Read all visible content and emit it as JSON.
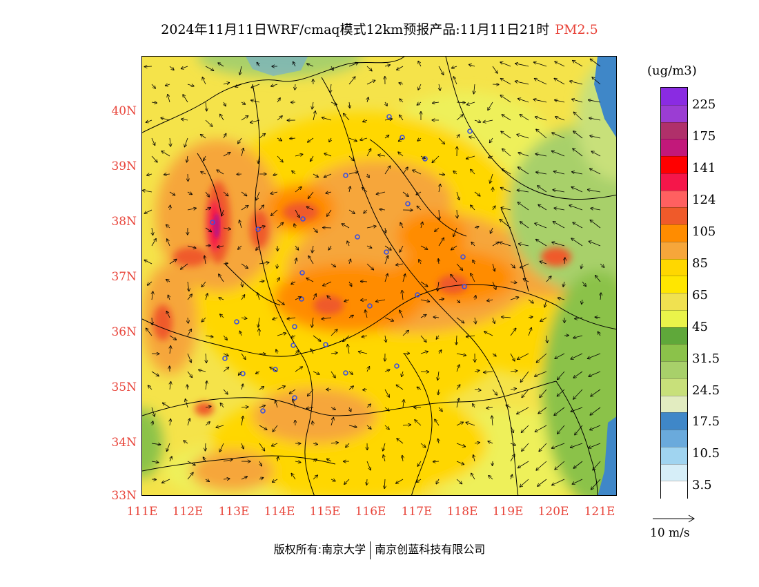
{
  "title": {
    "main": "2024年11月11日WRF/cmaq模式12km预报产品:11月11日21时",
    "pollutant": "PM2.5"
  },
  "map": {
    "lat_labels": [
      "40N",
      "39N",
      "38N",
      "37N",
      "36N",
      "35N",
      "34N",
      "33N"
    ],
    "lon_labels": [
      "111E",
      "112E",
      "113E",
      "114E",
      "115E",
      "116E",
      "117E",
      "118E",
      "119E",
      "120E",
      "121E"
    ],
    "lon_range": [
      111,
      121.4
    ],
    "lat_range": [
      33,
      40.9
    ]
  },
  "legend": {
    "unit": "(ug/m3)",
    "labels": [
      "225",
      "175",
      "141",
      "124",
      "105",
      "85",
      "65",
      "45",
      "31.5",
      "24.5",
      "17.5",
      "10.5",
      "3.5"
    ],
    "colors": [
      "#8a2be2",
      "#9b3dd3",
      "#b0306a",
      "#c2187a",
      "#ff0000",
      "#f5164a",
      "#ff6060",
      "#ef5a2a",
      "#ff8c00",
      "#f6a63a",
      "#ffd700",
      "#ffe600",
      "#f0e150",
      "#eaf44a",
      "#5fa83a",
      "#8bc24a",
      "#a8d06a",
      "#c8e07a",
      "#e2ecc0",
      "#3f87c8",
      "#6aaadc",
      "#a0d4f0",
      "#d6eef8",
      "#ffffff"
    ]
  },
  "wind_reference": {
    "label": "10 m/s"
  },
  "credit": {
    "left": "版权所有:南京大学",
    "right": "南京创蓝科技有限公司"
  }
}
